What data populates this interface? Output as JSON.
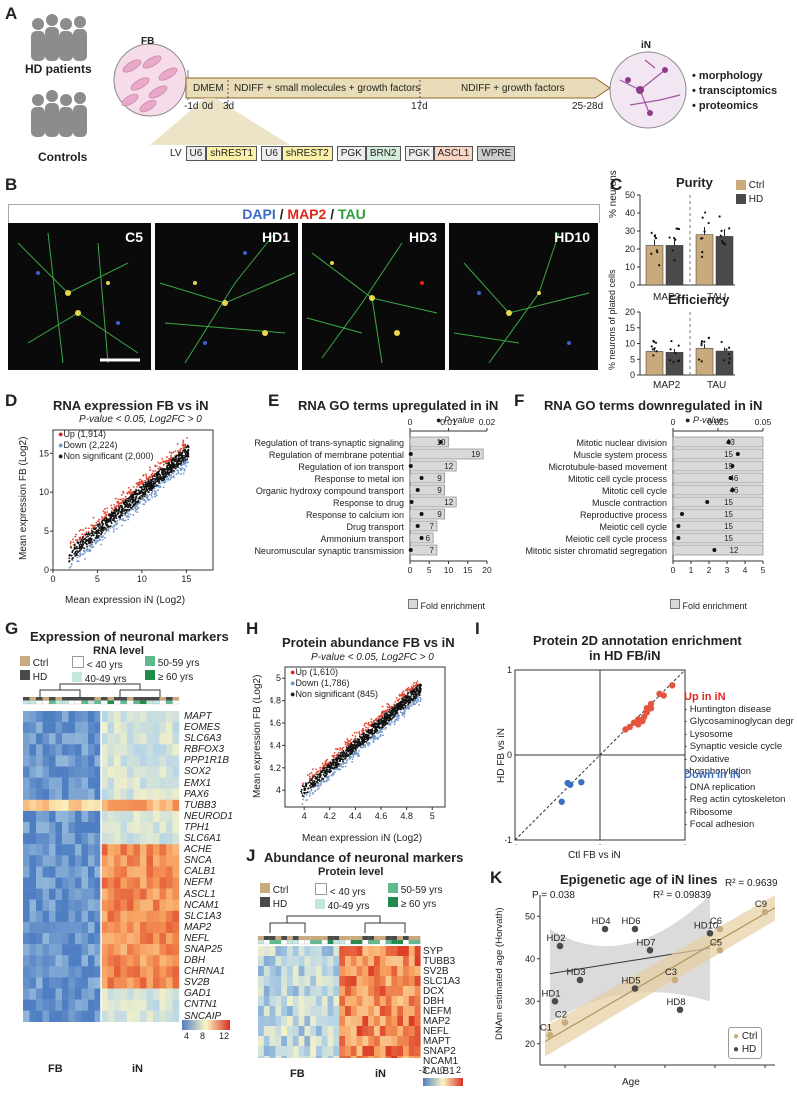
{
  "panels": {
    "A": {
      "label": "A",
      "people": [
        "HD patients",
        "Controls"
      ],
      "fb": "FB",
      "in": "iN",
      "timeline": [
        "DMEM",
        "NDIFF + small molecules + growth factors",
        "NDIFF + growth factors"
      ],
      "days": [
        "-1d",
        "0d",
        "3d",
        "17d",
        "25-28d"
      ],
      "outputs": [
        "morphology",
        "transciptomics",
        "proteomics"
      ],
      "construct": [
        "LV",
        "U6",
        "shREST1",
        "U6",
        "shREST2",
        "PGK",
        "BRN2",
        "PGK",
        "ASCL1",
        "WPRE"
      ]
    },
    "B": {
      "label": "B",
      "stain": [
        "DAPI",
        "/",
        "MAP2",
        "/",
        "TAU"
      ],
      "images": [
        "C5",
        "HD1",
        "HD3",
        "HD10"
      ]
    },
    "C": {
      "label": "C",
      "legend": [
        "Ctrl",
        "HD"
      ],
      "purity_title": "Purity",
      "purity_ylabel": "% neurons",
      "efficiency_title": "Efficiency",
      "efficiency_ylabel": "% neurons of plated cells",
      "x": [
        "MAP2",
        "TAU"
      ]
    },
    "D": {
      "label": "D",
      "title": "RNA expression FB vs iN",
      "sub": "P-value < 0.05, Log2FC > 0",
      "legend": [
        "Up (1,914)",
        "Down (2,224)",
        "Non significant (2,000)"
      ],
      "xlabel": "Mean expression iN (Log2)",
      "ylabel": "Mean expression FB (Log2)"
    },
    "E": {
      "label": "E",
      "title": "RNA GO terms upregulated in iN",
      "pval_label": "P-value",
      "xlabel": "Fold enrichment",
      "terms": [
        {
          "name": "Regulation of trans-synaptic signaling",
          "fe": 10,
          "p": 0.008
        },
        {
          "name": "Regulation of membrane potential",
          "fe": 19,
          "p": 0.0002
        },
        {
          "name": "Regulation of ion transport",
          "fe": 12,
          "p": 0.0002
        },
        {
          "name": "Response to metal ion",
          "fe": 9,
          "p": 0.003
        },
        {
          "name": "Organic hydroxy compound transport",
          "fe": 9,
          "p": 0.002
        },
        {
          "name": "Response to drug",
          "fe": 12,
          "p": 0.0004
        },
        {
          "name": "Response to calcium ion",
          "fe": 9,
          "p": 0.003
        },
        {
          "name": "Drug transport",
          "fe": 7,
          "p": 0.002
        },
        {
          "name": "Ammonium transport",
          "fe": 6,
          "p": 0.003
        },
        {
          "name": "Neuromuscular synaptic transmission",
          "fe": 7,
          "p": 0.0002
        }
      ]
    },
    "F": {
      "label": "F",
      "title": "RNA GO terms downregulated in iN",
      "pval_label": "P-value",
      "xlabel": "Fold enrichment",
      "terms": [
        {
          "name": "Mitotic nuclear division",
          "fe": 43,
          "p": 0.031
        },
        {
          "name": "Muscle system process",
          "fe": 15,
          "p": 0.036
        },
        {
          "name": "Microtubule-based movement",
          "fe": 15,
          "p": 0.033
        },
        {
          "name": "Mitotic cell cycle process",
          "fe": 46,
          "p": 0.032
        },
        {
          "name": "Mitotic cell cycle",
          "fe": 46,
          "p": 0.033
        },
        {
          "name": "Muscle contraction",
          "fe": 15,
          "p": 0.019
        },
        {
          "name": "Reproductive process",
          "fe": 15,
          "p": 0.005
        },
        {
          "name": "Meiotic cell cycle",
          "fe": 15,
          "p": 0.003
        },
        {
          "name": "Meiotic cell cycle process",
          "fe": 15,
          "p": 0.003
        },
        {
          "name": "Mitotic sister chromatid segregation",
          "fe": 12,
          "p": 0.023
        }
      ]
    },
    "G": {
      "label": "G",
      "title": "Expression of neuronal markers",
      "sub": "RNA level",
      "legend_group": [
        "Ctrl",
        "HD"
      ],
      "legend_age": [
        "< 40 yrs",
        "40-49 yrs",
        "50-59 yrs",
        "≥ 60 yrs"
      ],
      "genes": [
        "MAPT",
        "EOMES",
        "SLC6A3",
        "RBFOX3",
        "PPP1R1B",
        "SOX2",
        "EMX1",
        "PAX6",
        "TUBB3",
        "NEUROD1",
        "TPH1",
        "SLC6A1",
        "ACHE",
        "SNCA",
        "CALB1",
        "NEFM",
        "ASCL1",
        "NCAM1",
        "SLC1A3",
        "MAP2",
        "NEFL",
        "SNAP25",
        "DBH",
        "CHRNA1",
        "SV2B",
        "GAD1",
        "CNTN1",
        "SNCAIP"
      ],
      "groups": [
        "FB",
        "iN"
      ],
      "scale": [
        "4",
        "8",
        "12"
      ]
    },
    "H": {
      "label": "H",
      "title": "Protein abundance FB vs iN",
      "sub": "P-value < 0.05, Log2FC > 0",
      "legend": [
        "Up (1,610)",
        "Down (1,786)",
        "Non significant (845)"
      ],
      "xlabel": "Mean expression iN (Log2)",
      "ylabel": "Mean expression FB (Log2)"
    },
    "I": {
      "label": "I",
      "title": "Protein 2D annotation enrichment",
      "title2": "in HD FB/iN",
      "xlabel": "Ctl FB vs iN",
      "ylabel": "HD FB vs iN",
      "up_title": "Up in iN",
      "up_terms": [
        "- Huntington disease",
        "- Glycosaminoglycan degr",
        "- Lysosome",
        "- Synaptic vesicle cycle",
        "- Oxidative phosphorylation"
      ],
      "down_title": "Down in iN",
      "down_terms": [
        "- DNA replication",
        "- Reg actin cytoskeleton",
        "- Ribosome",
        "- Focal adhesion"
      ]
    },
    "J": {
      "label": "J",
      "title": "Abundance of neuronal markers",
      "sub": "Protein level",
      "legend_group": [
        "Ctrl",
        "HD"
      ],
      "legend_age": [
        "< 40 yrs",
        "40-49 yrs",
        "50-59 yrs",
        "≥ 60 yrs"
      ],
      "proteins": [
        "SYP",
        "TUBB3",
        "SV2B",
        "SLC1A3",
        "DCX",
        "DBH",
        "NEFM",
        "MAP2",
        "NEFL",
        "MAPT",
        "SNAP2",
        "NCAM1",
        "CALB1"
      ],
      "groups": [
        "FB",
        "iN"
      ],
      "scale": [
        "-3",
        "0",
        "2"
      ]
    },
    "K": {
      "label": "K",
      "title": "Epigenetic age of iN lines",
      "p": "P = 0.038",
      "r2_hd": "R² = 0.09839",
      "r2_ctrl": "R² = 0.9639",
      "xlabel": "Age",
      "ylabel": "DNAm estimated age (Horvath)",
      "legend": [
        "Ctrl",
        "HD"
      ]
    }
  },
  "chart_data": [
    {
      "type": "bar",
      "title": "Purity",
      "ylabel": "% neurons",
      "categories": [
        "MAP2",
        "TAU"
      ],
      "ylim": [
        0,
        50
      ],
      "series": [
        {
          "name": "Ctrl",
          "values": [
            22,
            28
          ]
        },
        {
          "name": "HD",
          "values": [
            22,
            27
          ]
        }
      ]
    },
    {
      "type": "bar",
      "title": "Efficiency",
      "ylabel": "% neurons of plated cells",
      "categories": [
        "MAP2",
        "TAU"
      ],
      "ylim": [
        0,
        20
      ],
      "series": [
        {
          "name": "Ctrl",
          "values": [
            7.5,
            8.5
          ]
        },
        {
          "name": "HD",
          "values": [
            7.2,
            7.6
          ]
        }
      ]
    },
    {
      "type": "scatter",
      "title": "Epigenetic age of iN lines",
      "xlabel": "Age",
      "ylabel": "DNAm estimated age (Horvath)",
      "xlim": [
        25,
        72
      ],
      "ylim": [
        15,
        55
      ],
      "series": [
        {
          "name": "Ctrl",
          "points": [
            {
              "label": "C1",
              "x": 27,
              "y": 22
            },
            {
              "label": "C2",
              "x": 30,
              "y": 25
            },
            {
              "label": "C3",
              "x": 52,
              "y": 35
            },
            {
              "label": "C5",
              "x": 61,
              "y": 42
            },
            {
              "label": "C6",
              "x": 61,
              "y": 47
            },
            {
              "label": "C9",
              "x": 70,
              "y": 51
            }
          ]
        },
        {
          "name": "HD",
          "points": [
            {
              "label": "HD1",
              "x": 28,
              "y": 30
            },
            {
              "label": "HD2",
              "x": 29,
              "y": 43
            },
            {
              "label": "HD3",
              "x": 33,
              "y": 35
            },
            {
              "label": "HD4",
              "x": 38,
              "y": 47
            },
            {
              "label": "HD5",
              "x": 44,
              "y": 33
            },
            {
              "label": "HD6",
              "x": 44,
              "y": 47
            },
            {
              "label": "HD7",
              "x": 47,
              "y": 42
            },
            {
              "label": "HD8",
              "x": 53,
              "y": 28
            },
            {
              "label": "HD10",
              "x": 59,
              "y": 46
            }
          ]
        }
      ]
    }
  ]
}
